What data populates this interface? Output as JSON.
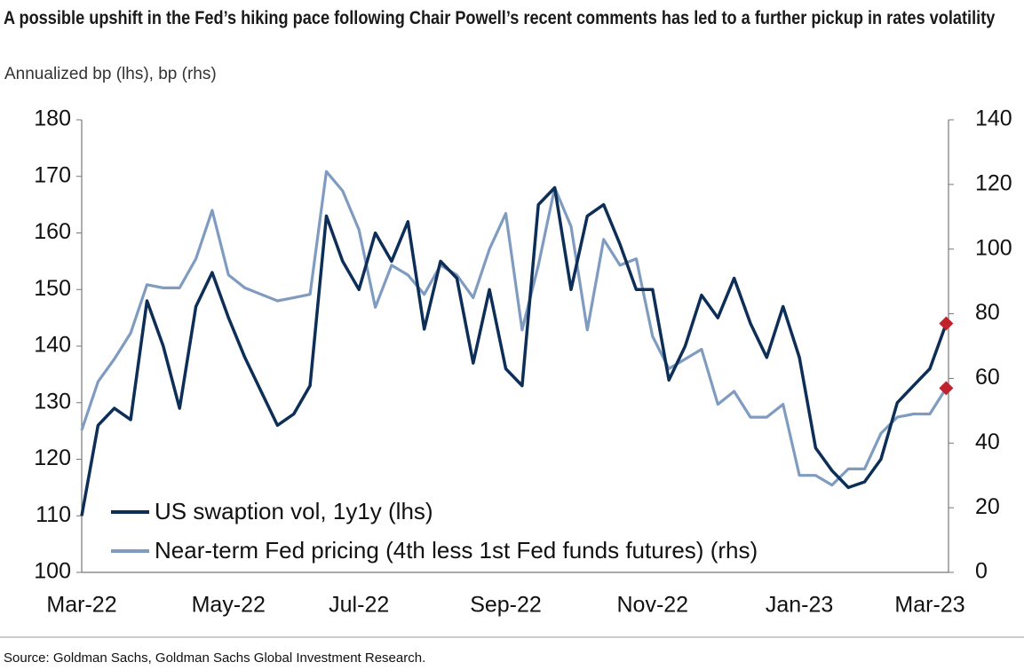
{
  "chart_data": {
    "type": "line",
    "title": "A possible upshift in the Fed’s hiking pace following Chair Powell’s recent comments has led to a further pickup in rates volatility",
    "subtitle": "Annualized bp (lhs), bp (rhs)",
    "source": "Source: Goldman Sachs, Goldman Sachs Global Investment Research.",
    "categories": [
      "Mar-22",
      null,
      null,
      null,
      null,
      null,
      null,
      null,
      null,
      "May-22",
      null,
      null,
      null,
      null,
      null,
      null,
      null,
      "Jul-22",
      null,
      null,
      null,
      null,
      null,
      null,
      null,
      null,
      "Sep-22",
      null,
      null,
      null,
      null,
      null,
      null,
      null,
      null,
      "Nov-22",
      null,
      null,
      null,
      null,
      null,
      null,
      null,
      null,
      "Jan-23",
      null,
      null,
      null,
      null,
      null,
      null,
      null,
      "Mar-23",
      null
    ],
    "series": [
      {
        "name": "US swaption vol, 1y1y (lhs)",
        "color": "#0d2f57",
        "values": [
          110,
          126,
          129,
          127,
          148,
          140,
          129,
          147,
          153,
          145,
          138,
          132,
          126,
          128,
          133,
          163,
          155,
          150,
          160,
          155,
          162,
          143,
          155,
          152,
          137,
          150,
          136,
          133,
          165,
          168,
          150,
          163,
          165,
          158,
          150,
          150,
          134,
          140,
          149,
          145,
          152,
          144,
          138,
          147,
          138,
          122,
          118,
          115,
          116,
          120,
          130,
          133,
          136,
          144
        ]
      },
      {
        "name": "Near-term Fed pricing (4th less 1st Fed funds futures) (rhs)",
        "color": "#7f9cc0",
        "axis": "y2",
        "values": [
          44,
          59,
          66,
          74,
          89,
          88,
          88,
          97,
          112,
          92,
          88,
          86,
          84,
          85,
          86,
          124,
          118,
          106,
          82,
          95,
          92,
          86,
          95,
          92,
          85,
          100,
          111,
          75,
          95,
          119,
          107,
          75,
          103,
          95,
          97,
          73,
          63,
          66,
          69,
          52,
          56,
          48,
          48,
          52,
          30,
          30,
          27,
          32,
          32,
          43,
          48,
          49,
          49,
          57
        ]
      }
    ],
    "end_marker_color": "#c0232b",
    "ylim": [
      100,
      180
    ],
    "yticks": [
      100,
      110,
      120,
      130,
      140,
      150,
      160,
      170,
      180
    ],
    "y2lim": [
      0,
      140
    ],
    "y2ticks": [
      0,
      20,
      40,
      60,
      80,
      100,
      120,
      140
    ],
    "grid": false,
    "legend": "lower left"
  }
}
